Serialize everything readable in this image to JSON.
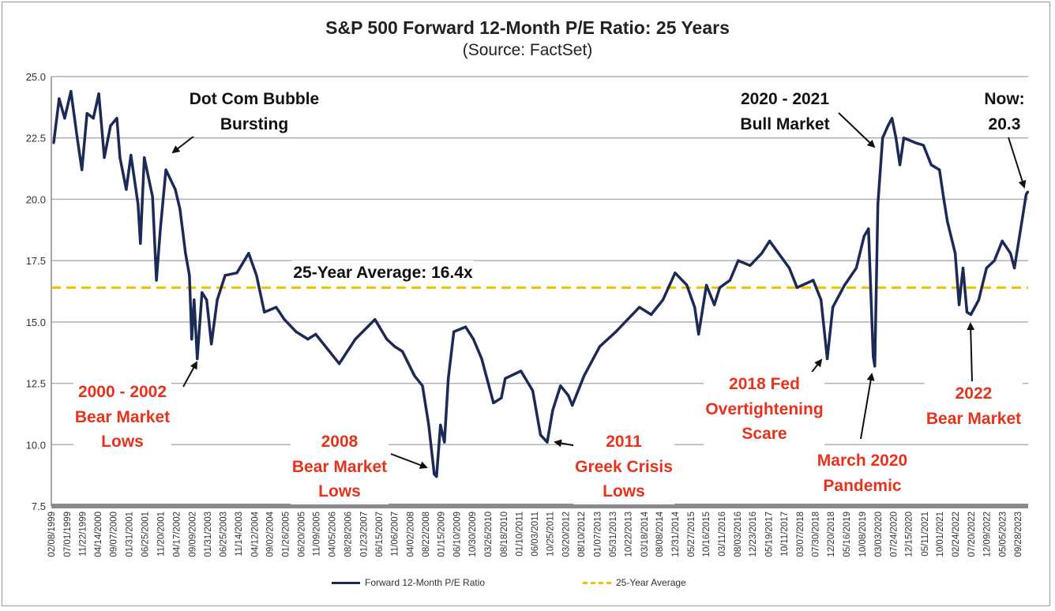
{
  "chart_data": {
    "type": "line",
    "title": "S&P 500 Forward 12-Month P/E Ratio: 25 Years",
    "subtitle": "(Source: FactSet)",
    "xlabel": "",
    "ylabel": "",
    "xlim": [
      1999.1,
      2024.0
    ],
    "ylim": [
      7.5,
      25.0
    ],
    "yticks": [
      "25.0",
      "22.5",
      "20.0",
      "17.5",
      "15.0",
      "12.5",
      "10.0",
      "7.5"
    ],
    "grid": true,
    "legend_position": "bottom",
    "xtick_labels": [
      "02/08/1999",
      "07/01/1999",
      "11/22/1999",
      "04/14/2000",
      "09/07/2000",
      "01/31/2001",
      "06/25/2001",
      "11/20/2001",
      "04/17/2002",
      "09/09/2002",
      "01/31/2003",
      "06/25/2003",
      "11/14/2003",
      "04/12/2004",
      "09/02/2004",
      "01/26/2005",
      "06/20/2005",
      "11/09/2005",
      "04/05/2006",
      "08/28/2006",
      "01/23/2007",
      "06/15/2007",
      "11/06/2007",
      "04/02/2008",
      "08/22/2008",
      "01/15/2009",
      "06/10/2009",
      "10/30/2009",
      "03/26/2010",
      "08/18/2010",
      "01/10/2011",
      "06/03/2011",
      "10/25/2011",
      "03/20/2012",
      "08/10/2012",
      "01/07/2013",
      "05/31/2013",
      "10/22/2013",
      "03/18/2014",
      "08/08/2014",
      "12/31/2014",
      "05/27/2015",
      "10/16/2015",
      "03/11/2016",
      "08/03/2016",
      "12/23/2016",
      "05/19/2017",
      "10/11/2017",
      "03/07/2018",
      "07/30/2018",
      "12/20/2018",
      "05/16/2019",
      "10/08/2019",
      "03/03/2020",
      "07/24/2020",
      "12/15/2020",
      "05/11/2021",
      "10/01/2021",
      "02/24/2022",
      "07/20/2022",
      "12/09/2022",
      "05/05/2023",
      "09/28/2023"
    ],
    "series": [
      {
        "name": "Forward 12-Month P/E Ratio",
        "color": "#1b2a57",
        "x": [
          1999.16,
          1999.3,
          1999.44,
          1999.6,
          1999.76,
          1999.88,
          2000.01,
          2000.17,
          2000.31,
          2000.45,
          2000.61,
          2000.77,
          2000.85,
          2001.01,
          2001.13,
          2001.31,
          2001.37,
          2001.47,
          2001.68,
          2001.78,
          2001.88,
          2002.02,
          2002.26,
          2002.38,
          2002.52,
          2002.62,
          2002.68,
          2002.74,
          2002.82,
          2002.94,
          2003.06,
          2003.18,
          2003.33,
          2003.53,
          2003.83,
          2004.13,
          2004.33,
          2004.53,
          2004.83,
          2005.04,
          2005.34,
          2005.64,
          2005.84,
          2006.44,
          2006.85,
          2007.35,
          2007.65,
          2007.85,
          2008.05,
          2008.36,
          2008.56,
          2008.72,
          2008.86,
          2008.92,
          2009.02,
          2009.12,
          2009.22,
          2009.36,
          2009.66,
          2009.86,
          2010.07,
          2010.37,
          2010.57,
          2010.67,
          2011.07,
          2011.37,
          2011.57,
          2011.74,
          2011.88,
          2012.08,
          2012.28,
          2012.38,
          2012.68,
          2013.08,
          2013.49,
          2013.79,
          2014.09,
          2014.39,
          2014.69,
          2015.0,
          2015.3,
          2015.5,
          2015.6,
          2015.8,
          2016.0,
          2016.14,
          2016.4,
          2016.61,
          2016.91,
          2017.21,
          2017.41,
          2017.91,
          2018.11,
          2018.52,
          2018.72,
          2018.88,
          2019.02,
          2019.32,
          2019.62,
          2019.82,
          2019.93,
          2020.05,
          2020.09,
          2020.17,
          2020.29,
          2020.43,
          2020.53,
          2020.63,
          2020.73,
          2020.83,
          2021.13,
          2021.33,
          2021.53,
          2021.74,
          2021.84,
          2021.94,
          2022.14,
          2022.24,
          2022.34,
          2022.44,
          2022.54,
          2022.74,
          2022.94,
          2023.14,
          2023.34,
          2023.55,
          2023.65,
          2023.79,
          2023.95,
          2023.99
        ],
        "y": [
          22.3,
          24.1,
          23.3,
          24.4,
          22.5,
          21.2,
          23.5,
          23.3,
          24.3,
          21.7,
          23.0,
          23.3,
          21.7,
          20.4,
          21.8,
          19.8,
          18.2,
          21.7,
          20.1,
          16.7,
          18.8,
          21.2,
          20.4,
          19.6,
          17.8,
          16.9,
          14.3,
          15.9,
          13.5,
          16.2,
          15.9,
          14.1,
          15.9,
          16.9,
          17.0,
          17.8,
          16.9,
          15.4,
          15.6,
          15.1,
          14.6,
          14.3,
          14.5,
          13.3,
          14.3,
          15.1,
          14.3,
          14.0,
          13.8,
          12.8,
          12.4,
          10.8,
          8.8,
          8.7,
          10.8,
          10.1,
          12.7,
          14.6,
          14.8,
          14.3,
          13.5,
          11.7,
          11.9,
          12.7,
          13.0,
          12.2,
          10.4,
          10.1,
          11.4,
          12.4,
          12.0,
          11.6,
          12.8,
          14.0,
          14.6,
          15.1,
          15.6,
          15.3,
          15.9,
          17.0,
          16.5,
          15.6,
          14.5,
          16.5,
          15.7,
          16.4,
          16.7,
          17.5,
          17.3,
          17.8,
          18.3,
          17.2,
          16.4,
          16.7,
          15.9,
          13.5,
          15.6,
          16.5,
          17.2,
          18.5,
          18.8,
          13.6,
          13.2,
          19.8,
          22.5,
          23.0,
          23.3,
          22.5,
          21.4,
          22.5,
          22.3,
          22.2,
          21.4,
          21.2,
          20.1,
          19.1,
          17.8,
          15.7,
          17.2,
          15.4,
          15.3,
          15.9,
          17.2,
          17.5,
          18.3,
          17.8,
          17.2,
          18.6,
          20.2,
          20.3
        ]
      },
      {
        "name": "25-Year Average",
        "color": "#f2c200",
        "value": 16.4
      }
    ],
    "annotations": {
      "dotcom": [
        "Dot Com Bubble",
        "Bursting"
      ],
      "bear0002": [
        "2000 - 2002",
        "Bear Market",
        "Lows"
      ],
      "average": "25-Year Average: 16.4x",
      "bear2008": [
        "2008",
        "Bear Market",
        "Lows"
      ],
      "greek2011": [
        "2011",
        "Greek Crisis",
        "Lows"
      ],
      "fed2018": [
        "2018 Fed",
        "Overtightening",
        "Scare"
      ],
      "pandemic": [
        "March 2020",
        "Pandemic"
      ],
      "bull2021": [
        "2020 - 2021",
        "Bull Market"
      ],
      "now": [
        "Now:",
        "20.3"
      ],
      "bear2022": [
        "2022",
        "Bear Market"
      ]
    }
  }
}
